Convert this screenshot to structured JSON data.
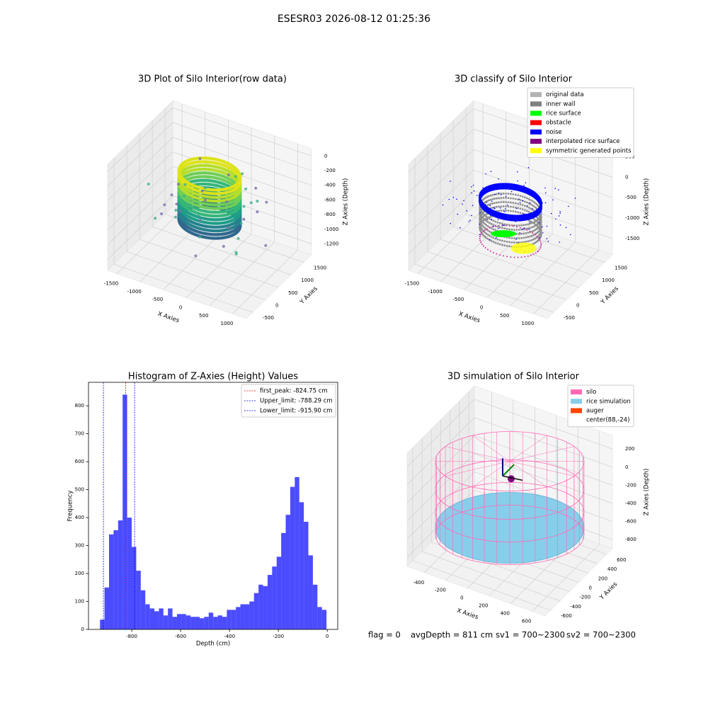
{
  "title": "ESESR03 2026-08-12 01:25:36",
  "chart_data": [
    {
      "type": "scatter3d",
      "title": "3D Plot of Silo Interior(row data)",
      "xlabel": "X Axies",
      "ylabel": "Y Axies",
      "zlabel": "Z Axies (Depth)",
      "xlim": [
        -1700,
        1300
      ],
      "ylim": [
        -750,
        1800
      ],
      "zlim": [
        -1350,
        100
      ],
      "xticks": [
        -1500,
        -1000,
        -500,
        0,
        500,
        1000
      ],
      "yticks": [
        -500,
        0,
        500,
        1000,
        1500
      ],
      "zticks": [
        0,
        -200,
        -400,
        -600,
        -800,
        -1000,
        -1200
      ]
    },
    {
      "type": "scatter3d",
      "title": "3D classify of Silo Interior",
      "xlabel": "X Axies",
      "ylabel": "Y Axies",
      "zlabel": "Z Axies (Depth)",
      "xlim": [
        -1700,
        1300
      ],
      "ylim": [
        -750,
        1800
      ],
      "zlim": [
        -1900,
        700
      ],
      "xticks": [
        -1500,
        -1000,
        -500,
        0,
        500,
        1000
      ],
      "yticks": [
        -500,
        0,
        500,
        1000,
        1500
      ],
      "zticks": [
        500,
        0,
        -500,
        -1000,
        -1500
      ],
      "legend": [
        {
          "name": "original data",
          "color": "#b3b3b3"
        },
        {
          "name": "inner wall",
          "color": "#808080"
        },
        {
          "name": "rice surface",
          "color": "#00ff00"
        },
        {
          "name": "obstacle",
          "color": "#ff0000"
        },
        {
          "name": "noise",
          "color": "#0000ff"
        },
        {
          "name": "interpolated rice surface",
          "color": "#800080"
        },
        {
          "name": "symmetric generated points",
          "color": "#ffff00"
        }
      ]
    },
    {
      "type": "histogram",
      "title": "Histogram of Z-Axies (Height) Values",
      "xlabel": "Depth (cm)",
      "ylabel": "Frequency",
      "color": "#0000ff",
      "alpha": 0.7,
      "bins": [
        -930,
        -911.46,
        -892.92,
        -874.38,
        -855.84,
        -837.3,
        -818.76,
        -800.22,
        -781.68,
        -763.14,
        -744.6,
        -726.06,
        -707.52,
        -688.98,
        -670.44,
        -651.9,
        -633.36,
        -614.82,
        -596.28,
        -577.74,
        -559.2,
        -540.66,
        -522.12,
        -503.58,
        -485.04,
        -466.5,
        -447.96,
        -429.42,
        -410.88,
        -392.34,
        -373.8,
        -355.26,
        -336.72,
        -318.18,
        -299.64,
        -281.1,
        -262.56,
        -244.02,
        -225.48,
        -206.94,
        -188.4,
        -169.86,
        -151.32,
        -132.78,
        -114.24,
        -95.7,
        -77.16,
        -58.62,
        -40.08,
        -21.54,
        -3
      ],
      "values": [
        35,
        150,
        340,
        355,
        390,
        840,
        400,
        295,
        210,
        140,
        90,
        75,
        65,
        75,
        50,
        75,
        45,
        55,
        55,
        50,
        45,
        45,
        40,
        45,
        60,
        45,
        50,
        45,
        70,
        70,
        80,
        90,
        90,
        100,
        130,
        160,
        155,
        195,
        225,
        260,
        345,
        410,
        510,
        545,
        455,
        385,
        265,
        160,
        80,
        70
      ],
      "xlim": [
        -977,
        43
      ],
      "ylim": [
        0,
        884
      ],
      "xticks": [
        -800,
        -600,
        -400,
        -200,
        0
      ],
      "yticks": [
        0,
        100,
        200,
        300,
        400,
        500,
        600,
        700,
        800
      ],
      "lines": [
        {
          "name": "first_peak: -824.75 cm",
          "value": -824.75,
          "color": "#ff0000"
        },
        {
          "name": "Upper_limit: -788.29 cm",
          "value": -788.29,
          "color": "#0000ff"
        },
        {
          "name": "Lower_limit: -915.90 cm",
          "value": -915.9,
          "color": "#0000ff"
        }
      ]
    },
    {
      "type": "scatter3d",
      "title": "3D simulation of Silo Interior",
      "xlabel": "X Axies",
      "ylabel": "Y Axies",
      "zlabel": "Z Axies (Depth)",
      "xlim": [
        -560,
        720
      ],
      "ylim": [
        -720,
        720
      ],
      "zlim": [
        -900,
        350
      ],
      "xticks": [
        -400,
        -200,
        0,
        200,
        400,
        600
      ],
      "yticks": [
        -600,
        -400,
        -200,
        0,
        200,
        400,
        600
      ],
      "zticks": [
        200,
        0,
        -200,
        -400,
        -600,
        -800
      ],
      "legend": [
        {
          "name": "silo",
          "color": "#ff69b4"
        },
        {
          "name": "rice simulation",
          "color": "#87ceeb"
        },
        {
          "name": "auger",
          "color": "#ff4500"
        },
        {
          "name": "center(88,-24)",
          "color": "#ffffff"
        }
      ]
    }
  ],
  "footer": [
    "flag = 0",
    "avgDepth = 811 cm",
    "sv1 = 700~2300",
    "sv2 = 700~2300"
  ]
}
